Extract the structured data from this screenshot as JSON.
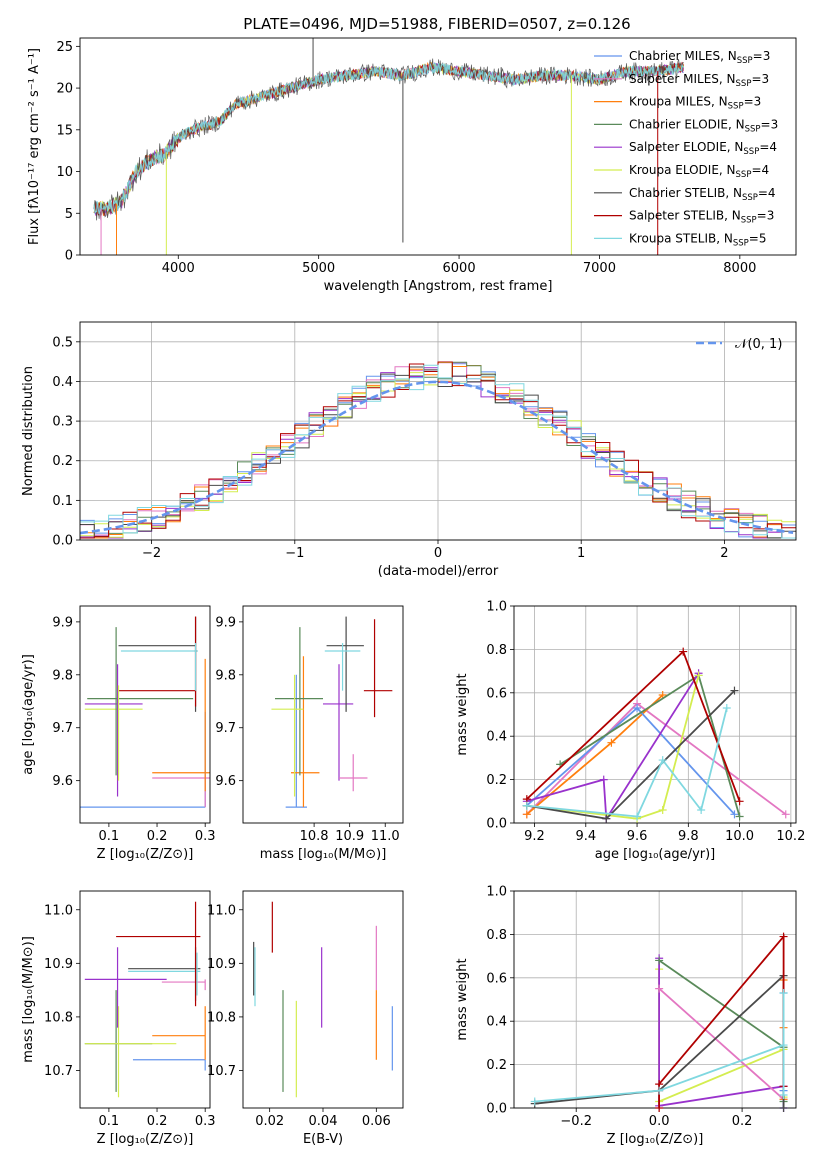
{
  "figure_title": "PLATE=0496, MJD=51988, FIBERID=0507, z=0.126",
  "legend_entries": [
    {
      "imf": "Chabrier",
      "lib": "MILES",
      "n": "3",
      "color": "#6495ed"
    },
    {
      "imf": "Salpeter",
      "lib": "MILES",
      "n": "3",
      "color": "#e377c2"
    },
    {
      "imf": "Kroupa",
      "lib": "MILES",
      "n": "3",
      "color": "#ff7f0e"
    },
    {
      "imf": "Chabrier",
      "lib": "ELODIE",
      "n": "3",
      "color": "#5a8a5a"
    },
    {
      "imf": "Salpeter",
      "lib": "ELODIE",
      "n": "4",
      "color": "#9932cc"
    },
    {
      "imf": "Kroupa",
      "lib": "ELODIE",
      "n": "4",
      "color": "#d4ed50"
    },
    {
      "imf": "Chabrier",
      "lib": "STELIB",
      "n": "4",
      "color": "#4a4a4a"
    },
    {
      "imf": "Salpeter",
      "lib": "STELIB",
      "n": "3",
      "color": "#b00000"
    },
    {
      "imf": "Kroupa",
      "lib": "STELIB",
      "n": "5",
      "color": "#80d8e0"
    }
  ],
  "chart_data": [
    {
      "id": "spectrum",
      "type": "line",
      "xlabel": "wavelength [Angstrom, rest frame]",
      "ylabel": "Flux [fλ10⁻¹⁷ erg cm⁻² s⁻¹ A⁻¹]",
      "xlim": [
        3300,
        8400
      ],
      "ylim": [
        0,
        26
      ],
      "grid": false,
      "xticks": [
        4000,
        5000,
        6000,
        7000,
        8000
      ],
      "yticks": [
        0,
        5,
        10,
        15,
        20,
        25
      ],
      "legend": "right",
      "data_points": [
        [
          3400,
          5.5
        ],
        [
          3500,
          5.6
        ],
        [
          3600,
          6.5
        ],
        [
          3700,
          10
        ],
        [
          3800,
          11.5
        ],
        [
          3900,
          12
        ],
        [
          4000,
          14
        ],
        [
          4100,
          15
        ],
        [
          4200,
          15.5
        ],
        [
          4300,
          16
        ],
        [
          4400,
          18
        ],
        [
          4500,
          18.5
        ],
        [
          4600,
          19
        ],
        [
          4700,
          19.5
        ],
        [
          4800,
          20
        ],
        [
          4900,
          20.5
        ],
        [
          5000,
          21
        ],
        [
          5200,
          21.5
        ],
        [
          5400,
          22
        ],
        [
          5600,
          21.5
        ],
        [
          5800,
          22.5
        ],
        [
          6000,
          22
        ],
        [
          6200,
          21.5
        ],
        [
          6400,
          21
        ],
        [
          6600,
          21.5
        ],
        [
          6800,
          21.5
        ],
        [
          7000,
          21
        ],
        [
          7200,
          22
        ],
        [
          7400,
          22
        ],
        [
          7600,
          22.5
        ]
      ],
      "spikes": [
        [
          3450,
          0
        ],
        [
          3560,
          0
        ],
        [
          3915,
          0
        ],
        [
          4960,
          26
        ],
        [
          5600,
          1.5
        ],
        [
          6300,
          22.5
        ],
        [
          6800,
          0
        ],
        [
          7415,
          0
        ]
      ]
    },
    {
      "id": "residuals",
      "type": "histogram",
      "xlabel": "(data-model)/error",
      "ylabel": "Normed distribution",
      "xlim": [
        -2.5,
        2.5
      ],
      "ylim": [
        0,
        0.55
      ],
      "grid": true,
      "xticks": [
        -2,
        -1,
        0,
        1,
        2
      ],
      "yticks": [
        0.0,
        0.1,
        0.2,
        0.3,
        0.4,
        0.5
      ],
      "legend_label": "𝒩(0, 1)",
      "legend": "upper right",
      "bin_width": 0.1
    },
    {
      "id": "age_vs_z",
      "type": "scatter",
      "xlabel": "Z [log₁₀(Z/Z⊙)]",
      "ylabel": "age  [log₁₀(age/yr)]",
      "xlim": [
        0.04,
        0.31
      ],
      "ylim": [
        9.52,
        9.93
      ],
      "grid": false,
      "xticks": [
        0.1,
        0.2,
        0.3
      ],
      "yticks": [
        9.6,
        9.7,
        9.8,
        9.9
      ],
      "points": [
        {
          "color": "#6495ed",
          "x": 0.15,
          "xerr": 0.15,
          "y": 9.55,
          "yerr": 0.0
        },
        {
          "color": "#e377c2",
          "x": 0.25,
          "xerr": 0.06,
          "y": 9.605,
          "yerr": 0.0
        },
        {
          "color": "#ff7f0e",
          "x": 0.25,
          "xerr": 0.06,
          "y": 9.615,
          "yerr": 0.0
        },
        {
          "color": "#5a8a5a",
          "x": 0.165,
          "xerr": 0.11,
          "y": 9.755,
          "yerr": 0.0
        },
        {
          "color": "#9932cc",
          "x": 0.11,
          "xerr": 0.06,
          "y": 9.745,
          "yerr": 0.0
        },
        {
          "color": "#d4ed50",
          "x": 0.11,
          "xerr": 0.06,
          "y": 9.735,
          "yerr": 0.0
        },
        {
          "color": "#4a4a4a",
          "x": 0.2,
          "xerr": 0.08,
          "y": 9.855,
          "yerr": 0.0
        },
        {
          "color": "#b00000",
          "x": 0.2,
          "xerr": 0.08,
          "y": 9.77,
          "yerr": 0.0
        },
        {
          "color": "#80d8e0",
          "x": 0.205,
          "xerr": 0.08,
          "y": 9.845,
          "yerr": 0.0
        }
      ],
      "vlines": [
        {
          "color": "#6495ed",
          "x": 0.3,
          "y0": 9.55,
          "y1": 9.73
        },
        {
          "color": "#e377c2",
          "x": 0.3,
          "y0": 9.55,
          "y1": 9.61
        },
        {
          "color": "#ff7f0e",
          "x": 0.3,
          "y0": 9.58,
          "y1": 9.83
        },
        {
          "color": "#5a8a5a",
          "x": 0.115,
          "y0": 9.61,
          "y1": 9.89
        },
        {
          "color": "#9932cc",
          "x": 0.118,
          "y0": 9.57,
          "y1": 9.82
        },
        {
          "color": "#d4ed50",
          "x": 0.12,
          "y0": 9.6,
          "y1": 9.78
        },
        {
          "color": "#4a4a4a",
          "x": 0.28,
          "y0": 9.73,
          "y1": 9.91
        },
        {
          "color": "#b00000",
          "x": 0.28,
          "y0": 9.74,
          "y1": 9.91
        },
        {
          "color": "#80d8e0",
          "x": 0.28,
          "y0": 9.77,
          "y1": 9.86
        }
      ]
    },
    {
      "id": "age_vs_mass",
      "type": "scatter",
      "xlabel": "mass [log₁₀(M/M⊙)]",
      "ylabel": "",
      "xlim": [
        10.6,
        11.05
      ],
      "ylim": [
        9.52,
        9.93
      ],
      "grid": false,
      "xticks": [
        10.8,
        10.9,
        11.0
      ],
      "yticks": [
        9.6,
        9.7,
        9.8,
        9.9
      ],
      "points": [
        {
          "color": "#6495ed",
          "x": 10.75,
          "xerr": 0.03,
          "xe0": 10.72,
          "xe1": 10.78,
          "y": 9.55,
          "y0": 9.55,
          "y1": 9.8
        },
        {
          "color": "#ff7f0e",
          "x": 10.77,
          "xe0": 10.735,
          "xe1": 10.815,
          "y": 9.615,
          "y0": 9.55,
          "y1": 9.835
        },
        {
          "color": "#5a8a5a",
          "x": 10.76,
          "xe0": 10.69,
          "xe1": 10.825,
          "y": 9.755,
          "y0": 9.61,
          "y1": 9.89
        },
        {
          "color": "#d4ed50",
          "x": 10.745,
          "xe0": 10.68,
          "xe1": 10.77,
          "y": 9.735,
          "y0": 9.57,
          "y1": 9.8
        },
        {
          "color": "#9932cc",
          "x": 10.87,
          "xe0": 10.825,
          "xe1": 10.91,
          "y": 9.745,
          "y0": 9.6,
          "y1": 9.82
        },
        {
          "color": "#4a4a4a",
          "x": 10.89,
          "xe0": 10.835,
          "xe1": 10.94,
          "y": 9.855,
          "y0": 9.73,
          "y1": 9.91
        },
        {
          "color": "#80d8e0",
          "x": 10.88,
          "xe0": 10.83,
          "xe1": 10.93,
          "y": 9.845,
          "y0": 9.77,
          "y1": 9.86
        },
        {
          "color": "#e377c2",
          "x": 10.91,
          "xe0": 10.87,
          "xe1": 10.95,
          "y": 9.605,
          "y0": 9.58,
          "y1": 9.65
        },
        {
          "color": "#b00000",
          "x": 10.97,
          "xe0": 10.94,
          "xe1": 11.02,
          "y": 9.77,
          "y0": 9.72,
          "y1": 9.905
        }
      ]
    },
    {
      "id": "weight_vs_age",
      "type": "line",
      "xlabel": "age  [log₁₀(age/yr)]",
      "ylabel": "mass weight",
      "xlim": [
        9.12,
        10.22
      ],
      "ylim": [
        0,
        1
      ],
      "grid": true,
      "xticks": [
        9.2,
        9.4,
        9.6,
        9.8,
        10.0,
        10.2
      ],
      "yticks": [
        0.0,
        0.2,
        0.4,
        0.6,
        0.8,
        1.0
      ],
      "series": [
        {
          "color": "#e377c2",
          "x": [
            9.17,
            9.6,
            10.18
          ],
          "y": [
            0.04,
            0.55,
            0.04
          ]
        },
        {
          "color": "#ff7f0e",
          "x": [
            9.17,
            9.5,
            9.7
          ],
          "y": [
            0.04,
            0.37,
            0.59
          ]
        },
        {
          "color": "#6495ed",
          "x": [
            9.17,
            9.6,
            9.98
          ],
          "y": [
            0.08,
            0.53,
            0.04
          ]
        },
        {
          "color": "#5a8a5a",
          "x": [
            9.3,
            9.84,
            10.0
          ],
          "y": [
            0.27,
            0.68,
            0.03
          ]
        },
        {
          "color": "#9932cc",
          "x": [
            9.17,
            9.47,
            9.48,
            9.84
          ],
          "y": [
            0.1,
            0.2,
            0.02,
            0.69
          ]
        },
        {
          "color": "#d4ed50",
          "x": [
            9.17,
            9.6,
            9.7,
            9.84
          ],
          "y": [
            0.08,
            0.02,
            0.06,
            0.68
          ]
        },
        {
          "color": "#4a4a4a",
          "x": [
            9.17,
            9.48,
            9.98
          ],
          "y": [
            0.08,
            0.02,
            0.61
          ]
        },
        {
          "color": "#b00000",
          "x": [
            9.17,
            9.78,
            10.0
          ],
          "y": [
            0.11,
            0.79,
            0.1
          ]
        },
        {
          "color": "#80d8e0",
          "x": [
            9.17,
            9.6,
            9.7,
            9.85,
            9.95
          ],
          "y": [
            0.08,
            0.03,
            0.29,
            0.06,
            0.53
          ]
        }
      ]
    },
    {
      "id": "mass_vs_z",
      "type": "scatter",
      "xlabel": "Z [log₁₀(Z/Z⊙)]",
      "ylabel": "mass [log₁₀(M/M⊙)]",
      "xlim": [
        0.04,
        0.31
      ],
      "ylim": [
        10.63,
        11.035
      ],
      "grid": false,
      "xticks": [
        0.1,
        0.2,
        0.3
      ],
      "yticks": [
        10.7,
        10.8,
        10.9,
        11.0
      ],
      "segments": [
        {
          "color": "#6495ed",
          "h": [
            0.15,
            0.3,
            10.72
          ],
          "v": [
            0.3,
            10.7,
            10.72
          ]
        },
        {
          "color": "#ff7f0e",
          "h": [
            0.19,
            0.3,
            10.765
          ],
          "v": [
            0.3,
            10.72,
            10.82
          ]
        },
        {
          "color": "#e377c2",
          "h": [
            0.21,
            0.3,
            10.865
          ],
          "v": [
            0.3,
            10.85,
            10.87
          ]
        },
        {
          "color": "#5a8a5a",
          "h": [
            0.05,
            0.19,
            10.75
          ],
          "v": [
            0.115,
            10.66,
            10.85
          ]
        },
        {
          "color": "#d4ed50",
          "h": [
            0.05,
            0.24,
            10.75
          ],
          "v": [
            0.12,
            10.65,
            10.82
          ]
        },
        {
          "color": "#9932cc",
          "h": [
            0.05,
            0.22,
            10.87
          ],
          "v": [
            0.118,
            10.78,
            10.93
          ]
        },
        {
          "color": "#4a4a4a",
          "h": [
            0.14,
            0.29,
            10.89
          ],
          "v": [
            0.28,
            10.83,
            10.93
          ]
        },
        {
          "color": "#80d8e0",
          "h": [
            0.14,
            0.29,
            10.885
          ],
          "v": [
            0.283,
            10.84,
            10.92
          ]
        },
        {
          "color": "#b00000",
          "h": [
            0.115,
            0.29,
            10.95
          ],
          "v": [
            0.28,
            10.82,
            11.015
          ]
        }
      ]
    },
    {
      "id": "mass_vs_ebv",
      "type": "scatter",
      "xlabel": "E(B-V)",
      "ylabel": "",
      "xlim": [
        0.01,
        0.07
      ],
      "ylim": [
        10.63,
        11.035
      ],
      "grid": false,
      "xticks": [
        0.02,
        0.04,
        0.06
      ],
      "yticks": [
        10.7,
        10.8,
        10.9,
        11.0
      ],
      "vlines": [
        {
          "color": "#4a4a4a",
          "x": 0.014,
          "y0": 10.84,
          "y1": 10.94
        },
        {
          "color": "#80d8e0",
          "x": 0.0145,
          "y0": 10.82,
          "y1": 10.93
        },
        {
          "color": "#b00000",
          "x": 0.021,
          "y0": 10.92,
          "y1": 11.015
        },
        {
          "color": "#5a8a5a",
          "x": 0.025,
          "y0": 10.66,
          "y1": 10.85
        },
        {
          "color": "#d4ed50",
          "x": 0.03,
          "y0": 10.65,
          "y1": 10.83
        },
        {
          "color": "#9932cc",
          "x": 0.0395,
          "y0": 10.78,
          "y1": 10.93
        },
        {
          "color": "#e377c2",
          "x": 0.06,
          "y0": 10.85,
          "y1": 10.97
        },
        {
          "color": "#ff7f0e",
          "x": 0.06,
          "y0": 10.72,
          "y1": 10.85
        },
        {
          "color": "#6495ed",
          "x": 0.066,
          "y0": 10.7,
          "y1": 10.82
        }
      ]
    },
    {
      "id": "weight_vs_z",
      "type": "line",
      "xlabel": "Z [log₁₀(Z/Z⊙)]",
      "ylabel": "mass weight",
      "xlim": [
        -0.35,
        0.33
      ],
      "ylim": [
        0,
        1
      ],
      "grid": true,
      "xticks": [
        -0.2,
        0.0,
        0.2
      ],
      "yticks": [
        0.0,
        0.2,
        0.4,
        0.6,
        0.8,
        1.0
      ],
      "series": [
        {
          "color": "#d4ed50",
          "x": [
            0.0,
            0.0,
            0.3,
            0.3
          ],
          "y": [
            0.64,
            0.03,
            0.27,
            0.05
          ]
        },
        {
          "color": "#9932cc",
          "x": [
            0.0,
            0.0,
            0.3,
            0.3
          ],
          "y": [
            0.69,
            0.01,
            0.1,
            0.0
          ]
        },
        {
          "color": "#5a8a5a",
          "x": [
            0.0,
            0.3,
            0.3
          ],
          "y": [
            0.68,
            0.28,
            0.03
          ]
        },
        {
          "color": "#e377c2",
          "x": [
            0.0,
            0.3,
            0.3
          ],
          "y": [
            0.55,
            0.04,
            0.0
          ]
        },
        {
          "color": "#ff7f0e",
          "x": [
            0.3,
            0.3,
            0.3
          ],
          "y": [
            0.59,
            0.37,
            0.04
          ]
        },
        {
          "color": "#6495ed",
          "x": [
            0.3,
            0.3,
            0.3
          ],
          "y": [
            0.53,
            0.08,
            0.0
          ]
        },
        {
          "color": "#4a4a4a",
          "x": [
            -0.3,
            0.0,
            0.3,
            0.3
          ],
          "y": [
            0.02,
            0.08,
            0.61,
            0.0
          ]
        },
        {
          "color": "#b00000",
          "x": [
            0.0,
            0.0,
            0.3,
            0.3
          ],
          "y": [
            0.0,
            0.11,
            0.79,
            0.1
          ]
        },
        {
          "color": "#80d8e0",
          "x": [
            -0.3,
            0.0,
            0.3,
            0.3,
            0.3
          ],
          "y": [
            0.03,
            0.08,
            0.29,
            0.53,
            0.06
          ]
        }
      ]
    }
  ]
}
